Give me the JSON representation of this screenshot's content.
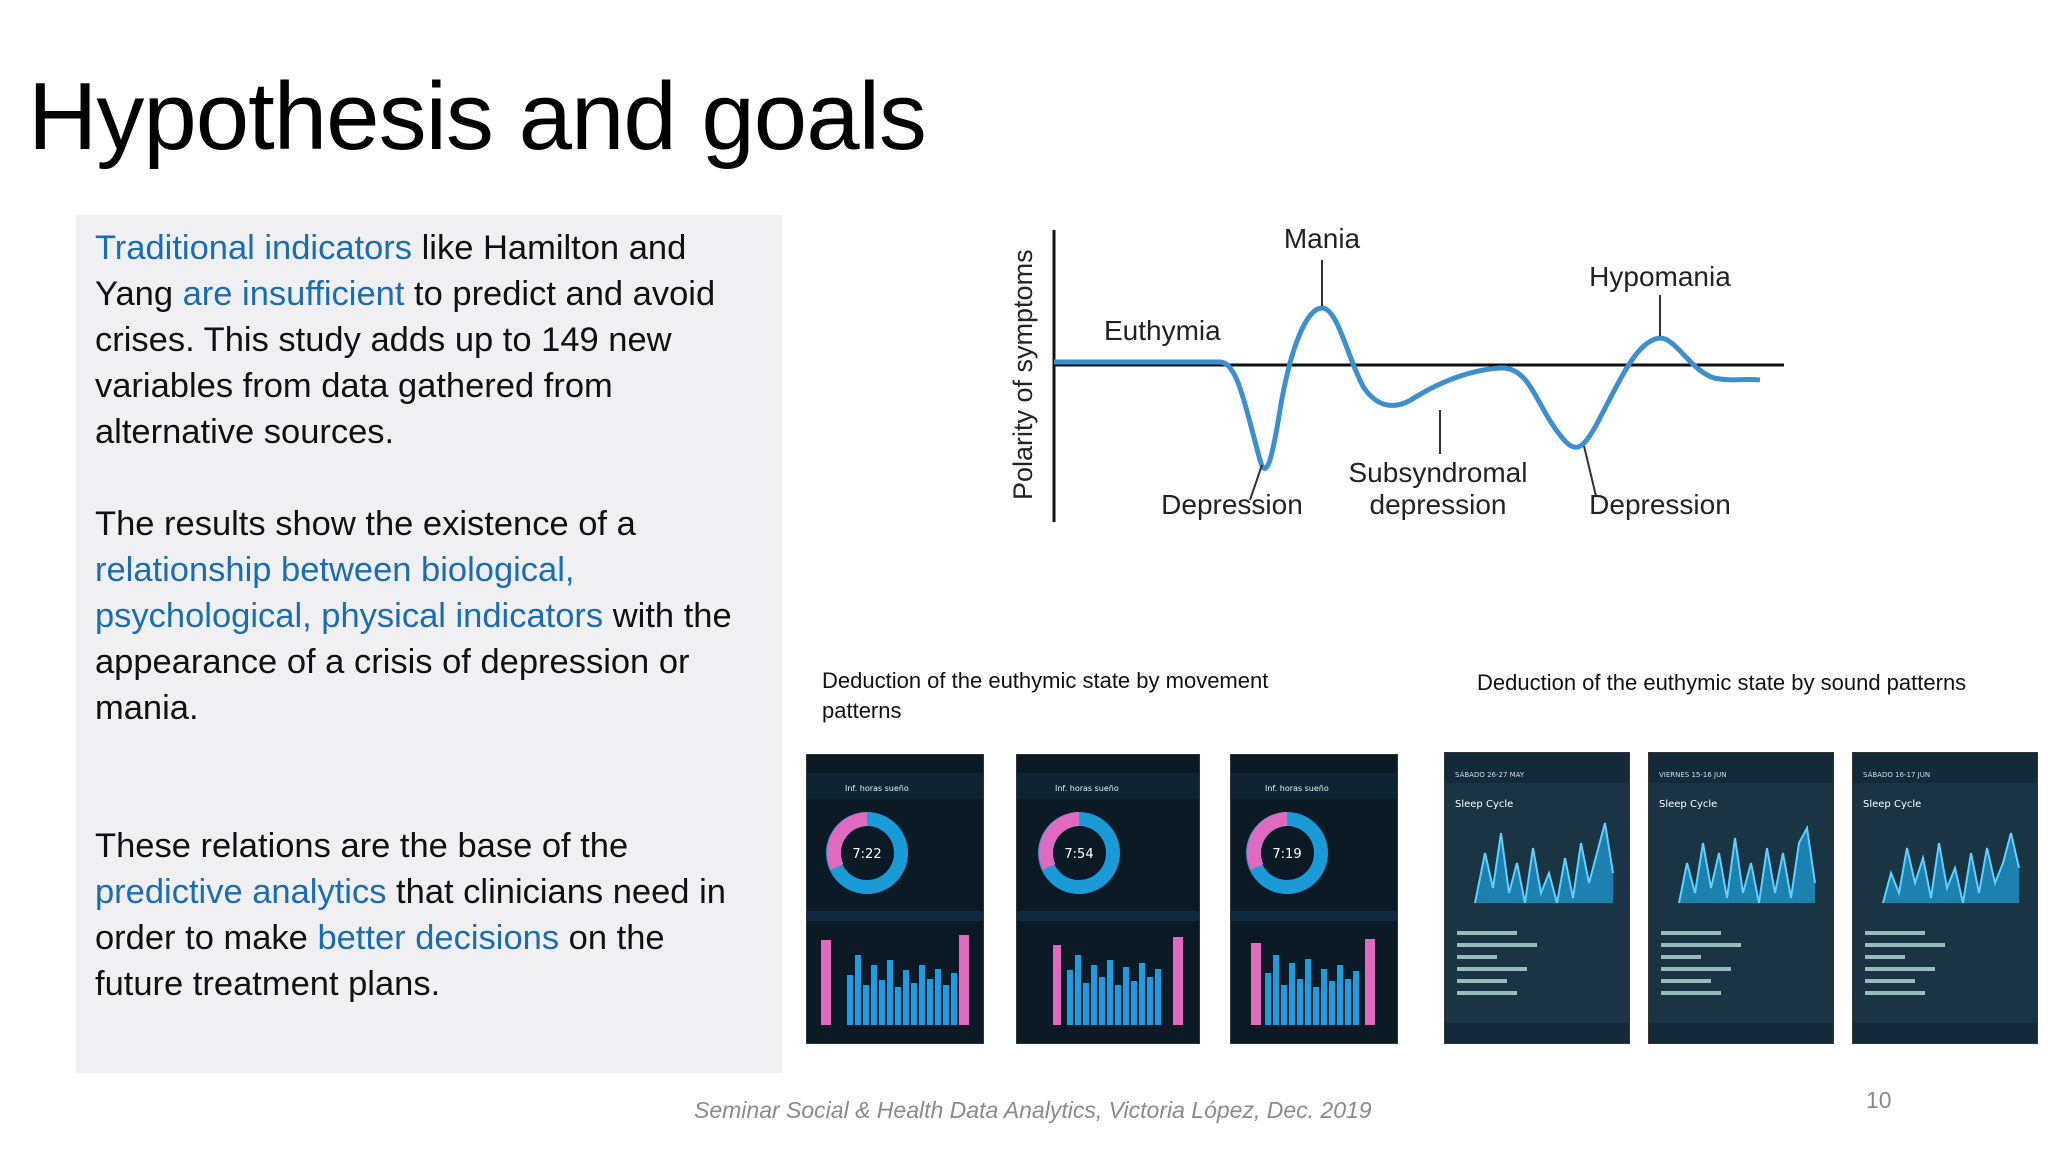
{
  "slide": {
    "title": "Hypothesis and goals",
    "page_number": "10",
    "footer": "Seminar Social & Health Data Analytics, Victoria López, Dec. 2019"
  },
  "text_box": {
    "p1": [
      {
        "t": "Traditional indicators",
        "hl": true
      },
      {
        "t": " like Hamilton and Yang ",
        "hl": false
      },
      {
        "t": "are insufficient",
        "hl": true
      },
      {
        "t": " to predict and avoid crises. This study adds up to 149 new variables from data gathered from alternative sources.",
        "hl": false
      }
    ],
    "p2": [
      {
        "t": "The results show the existence of a ",
        "hl": false
      },
      {
        "t": "relationship between biological, psychological, physical indicators",
        "hl": true
      },
      {
        "t": " with the appearance of a crisis of depression or mania.",
        "hl": false
      }
    ],
    "p3": [
      {
        "t": "These relations are the base of the ",
        "hl": false
      },
      {
        "t": "predictive analytics",
        "hl": true
      },
      {
        "t": " that clinicians need in order to make ",
        "hl": false
      },
      {
        "t": "better decisions",
        "hl": true
      },
      {
        "t": " on the future treatment plans.",
        "hl": false
      }
    ],
    "highlight_color": "#1a6cb4"
  },
  "mood_graph": {
    "ylabel": "Polarity of symptoms",
    "labels": {
      "euthymia": "Euthymia",
      "mania": "Mania",
      "hypomania": "Hypomania",
      "depression_1": "Depression",
      "subsyndromal_1": "Subsyndromal",
      "subsyndromal_2": "depression",
      "depression_2": "Depression"
    },
    "curve_color": "#3d8fcf"
  },
  "captions": {
    "movement": "Deduction of the euthymic state by movement patterns",
    "sound": "Deduction of the euthymic state by sound patterns"
  },
  "movement_phones": [
    {
      "header": "Inf. horas sueño",
      "time": "7:22"
    },
    {
      "header": "Inf. horas sueño",
      "time": "7:54"
    },
    {
      "header": "Inf. horas sueño",
      "time": "7:19"
    }
  ],
  "sound_phones": [
    {
      "header": "Sleep Cycle",
      "date": "SÁBADO 26-27 MAY"
    },
    {
      "header": "Sleep Cycle",
      "date": "VIERNES 15-16 JUN"
    },
    {
      "header": "Sleep Cycle",
      "date": "SÁBADO 16-17 JUN"
    }
  ]
}
